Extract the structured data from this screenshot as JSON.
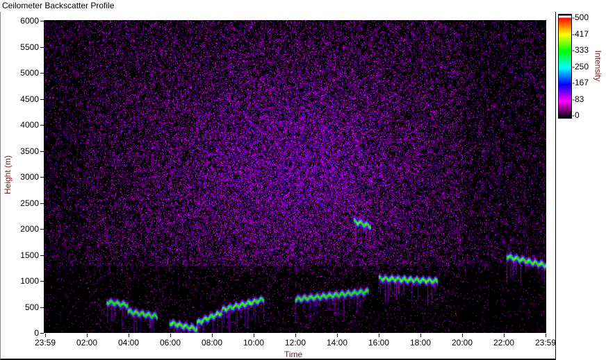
{
  "chart_data": {
    "type": "heatmap",
    "title": "Ceilometer Backscatter Profile",
    "xlabel": "Time",
    "ylabel": "Height (m)",
    "x_ticks": [
      "23:59",
      "02:00",
      "04:00",
      "06:00",
      "08:00",
      "10:00",
      "12:00",
      "14:00",
      "16:00",
      "18:00",
      "20:00",
      "22:00",
      "23:59"
    ],
    "y_ticks": [
      0,
      500,
      1000,
      1500,
      2000,
      2500,
      3000,
      3500,
      4000,
      4500,
      5000,
      5500,
      6000
    ],
    "ylim": [
      0,
      6000
    ],
    "xlim_hours": [
      0,
      24
    ],
    "colorbar": {
      "label": "Intensity",
      "ticks": [
        "500",
        "417",
        "333",
        "250",
        "167",
        "83",
        "0"
      ],
      "range": [
        0,
        500
      ],
      "colors": [
        "#000000",
        "#ff00ff",
        "#0000ff",
        "#00ffff",
        "#00ff00",
        "#ffff00",
        "#ff0000"
      ]
    },
    "cloud_layers": [
      {
        "hours": [
          3.0,
          4.0
        ],
        "height": [
          600,
          540
        ]
      },
      {
        "hours": [
          4.0,
          5.4
        ],
        "height": [
          420,
          320
        ]
      },
      {
        "hours": [
          6.0,
          7.3
        ],
        "height": [
          200,
          80
        ]
      },
      {
        "hours": [
          7.3,
          8.5
        ],
        "height": [
          200,
          400
        ]
      },
      {
        "hours": [
          8.5,
          10.5
        ],
        "height": [
          450,
          650
        ]
      },
      {
        "hours": [
          12,
          15.5
        ],
        "height": [
          650,
          800
        ]
      },
      {
        "hours": [
          16,
          18.8
        ],
        "height": [
          1050,
          1000
        ]
      },
      {
        "hours": [
          22.1,
          23.99
        ],
        "height": [
          1470,
          1300
        ]
      },
      {
        "hours": [
          14.8,
          15.6
        ],
        "height": [
          2150,
          2050
        ]
      }
    ]
  }
}
